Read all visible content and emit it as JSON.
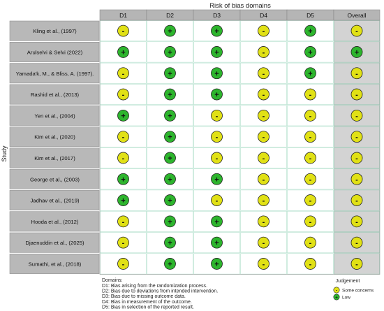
{
  "chart_data": {
    "type": "table",
    "title": "Risk of bias domains",
    "ylabel": "Study",
    "columns": [
      "D1",
      "D2",
      "D3",
      "D4",
      "D5",
      "Overall"
    ],
    "studies": [
      {
        "name": "Kling et al., (1997)",
        "judgements": [
          "some",
          "low",
          "low",
          "some",
          "low",
          "some"
        ]
      },
      {
        "name": "Arulselvi & Selvi (2022)",
        "judgements": [
          "low",
          "low",
          "low",
          "some",
          "low",
          "low"
        ]
      },
      {
        "name": "Yamada'k, M., & Bliss, A. (1997).",
        "judgements": [
          "some",
          "low",
          "low",
          "some",
          "low",
          "some"
        ]
      },
      {
        "name": "Rashid et al., (2013)",
        "judgements": [
          "some",
          "low",
          "low",
          "some",
          "some",
          "some"
        ]
      },
      {
        "name": "Yen et al., (2004)",
        "judgements": [
          "low",
          "low",
          "some",
          "some",
          "some",
          "some"
        ]
      },
      {
        "name": "Kim et al., (2020)",
        "judgements": [
          "some",
          "low",
          "some",
          "some",
          "some",
          "some"
        ]
      },
      {
        "name": "Kim et al., (2017)",
        "judgements": [
          "some",
          "low",
          "some",
          "some",
          "some",
          "some"
        ]
      },
      {
        "name": "George et al., (2003)",
        "judgements": [
          "low",
          "low",
          "low",
          "some",
          "some",
          "some"
        ]
      },
      {
        "name": "Jadhav et al., (2019)",
        "judgements": [
          "low",
          "low",
          "some",
          "some",
          "some",
          "some"
        ]
      },
      {
        "name": "Hooda et al., (2012)",
        "judgements": [
          "some",
          "low",
          "low",
          "some",
          "some",
          "some"
        ]
      },
      {
        "name": "Djaenuddin et al., (2025)",
        "judgements": [
          "some",
          "low",
          "low",
          "some",
          "some",
          "some"
        ]
      },
      {
        "name": "Sumathi, et al., (2018)",
        "judgements": [
          "some",
          "low",
          "low",
          "some",
          "some",
          "some"
        ]
      }
    ],
    "symbols": {
      "low": "+",
      "some": "-"
    },
    "colors": {
      "low": "#2db52d",
      "some": "#e1e115",
      "header": "#b5b5b5",
      "label": "#b8b8b8",
      "overall": "#d3d3d3",
      "grid": "#66c29a",
      "text": "#111111"
    },
    "domains_title": "Domains:",
    "domains": [
      "D1: Bias arising from the randomization process.",
      "D2: Bias due to deviations from intended intervention.",
      "D3: Bias due to missing outcome data.",
      "D4: Bias in measurement of the outcome.",
      "D5: Bias in selection of the reported result."
    ],
    "legend": {
      "title": "Judgement",
      "items": [
        {
          "key": "some",
          "label": "Some concerns"
        },
        {
          "key": "low",
          "label": "Low"
        }
      ]
    }
  }
}
